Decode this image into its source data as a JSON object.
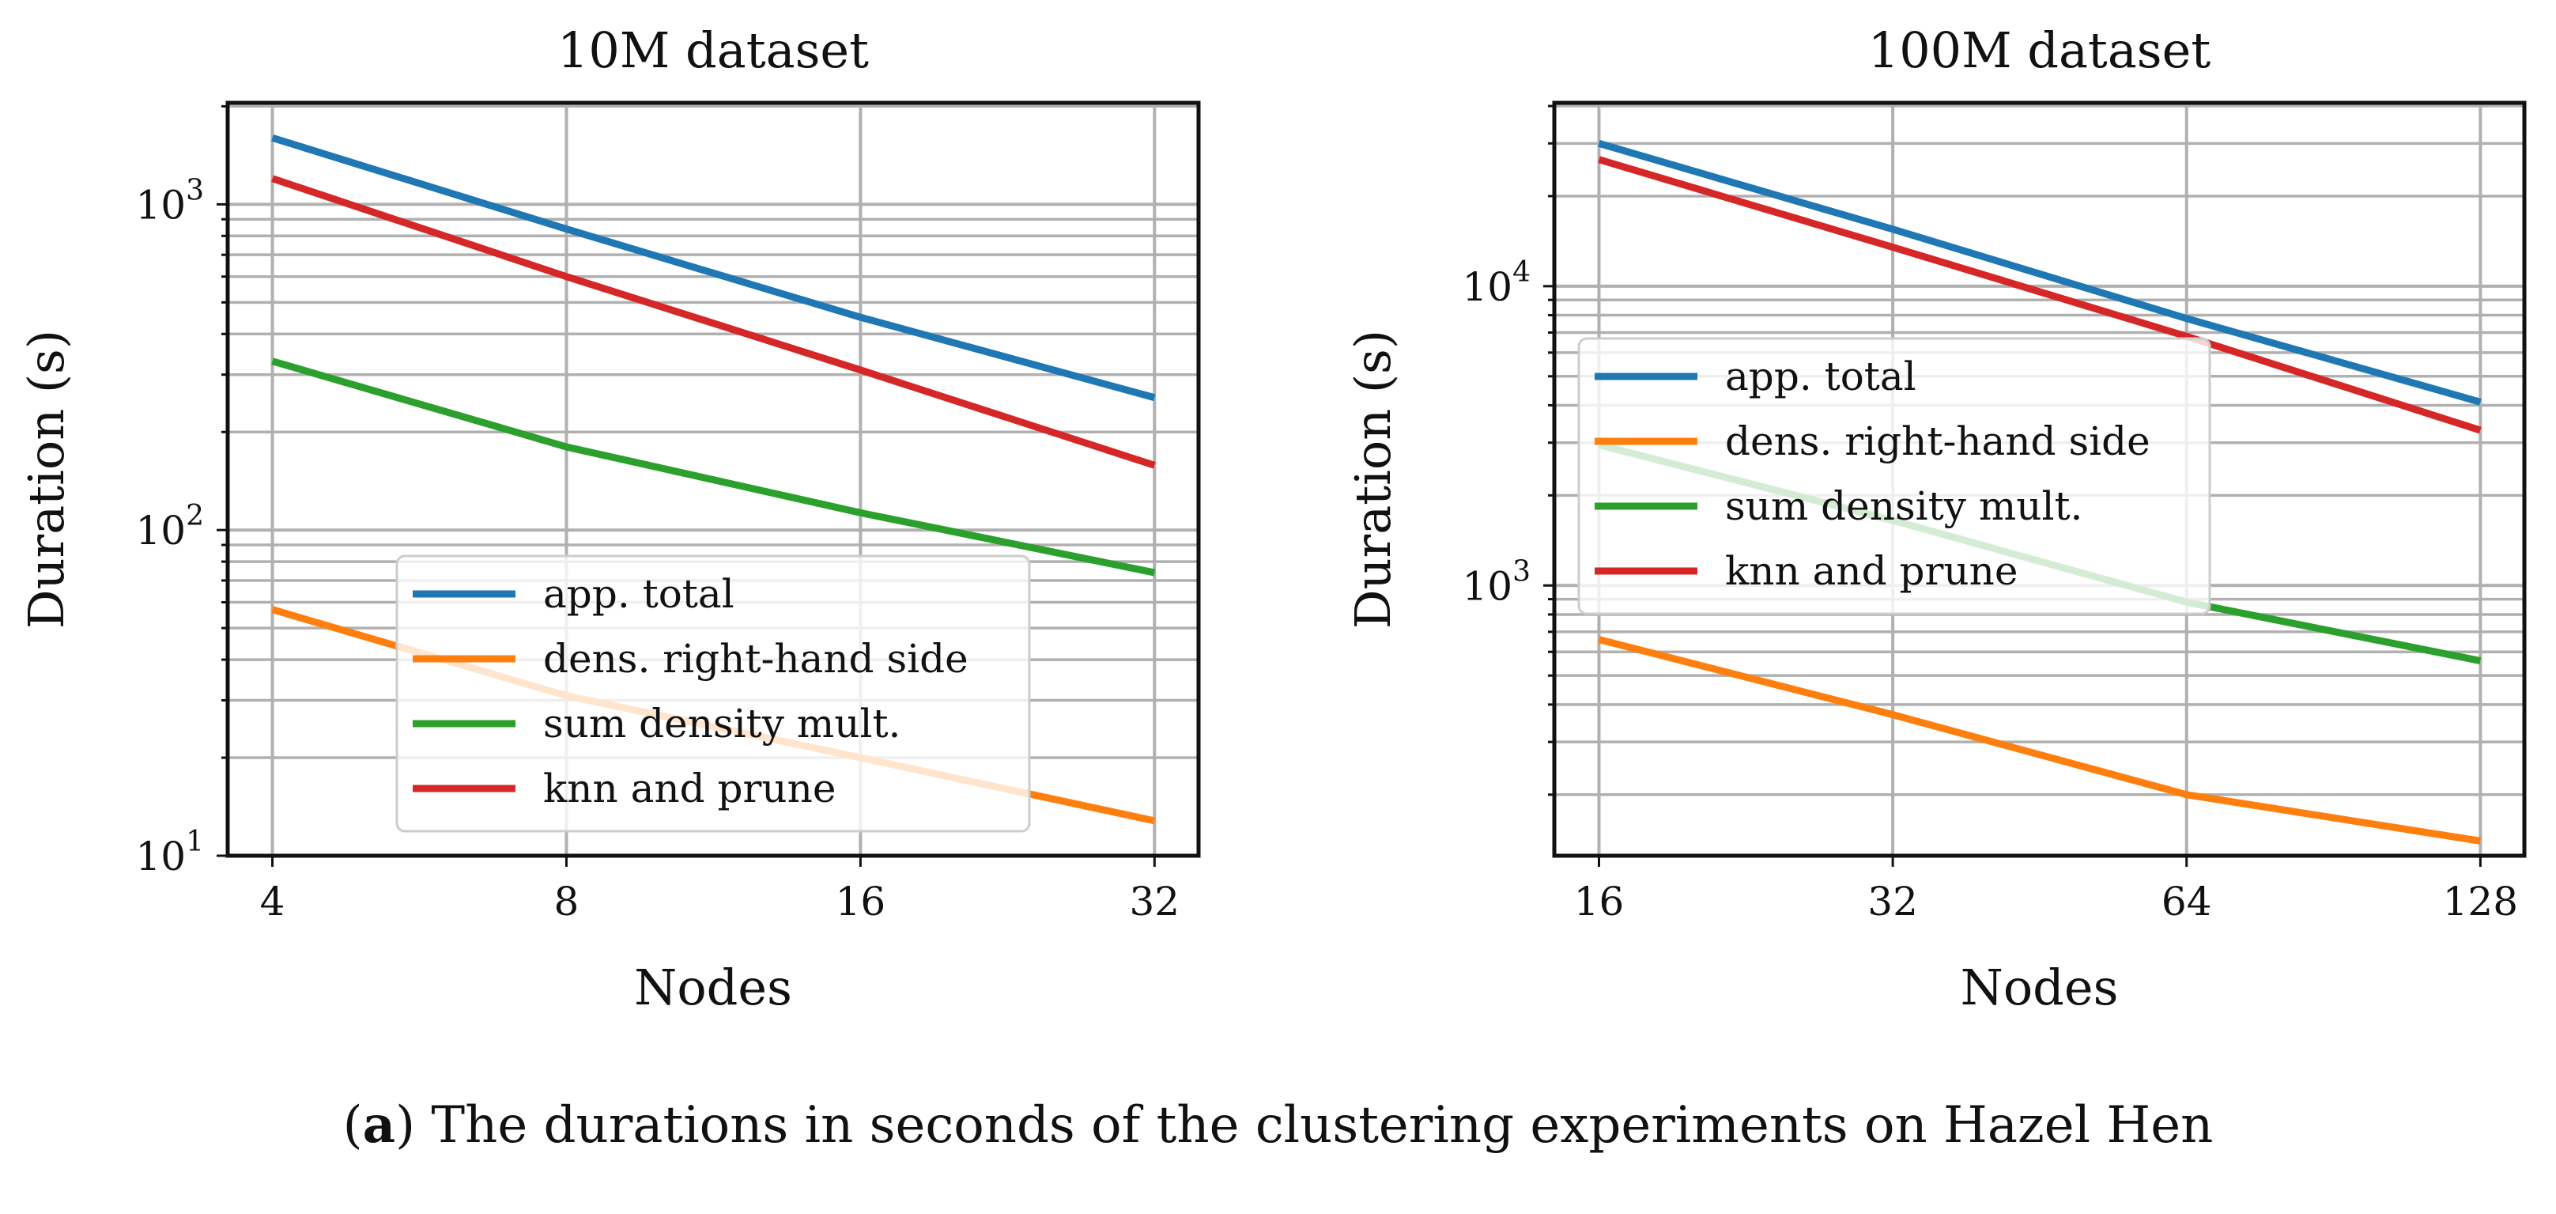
{
  "caption": {
    "label": "a",
    "text": "The durations in seconds of the clustering experiments on Hazel Hen"
  },
  "chart_data": [
    {
      "type": "line",
      "title": "10M dataset",
      "xlabel": "Nodes",
      "ylabel": "Duration (s)",
      "xscale": "log2",
      "yscale": "log10",
      "x": [
        4,
        8,
        16,
        32
      ],
      "xticks": [
        "4",
        "8",
        "16",
        "32"
      ],
      "xlim": [
        3.6,
        35.5
      ],
      "ylim": [
        10,
        2050
      ],
      "yticks": [
        {
          "base": "10",
          "exp": "1",
          "value": 10
        },
        {
          "base": "10",
          "exp": "2",
          "value": 100
        },
        {
          "base": "10",
          "exp": "3",
          "value": 1000
        }
      ],
      "grid": true,
      "legend": "lower-center",
      "series": [
        {
          "name": "app. total",
          "color": "#1f77b4",
          "values": [
            1600,
            840,
            450,
            255
          ]
        },
        {
          "name": "dens. right-hand side",
          "color": "#ff7f0e",
          "values": [
            57,
            31,
            20,
            12.8
          ]
        },
        {
          "name": "sum density mult.",
          "color": "#2ca02c",
          "values": [
            330,
            180,
            113,
            74
          ]
        },
        {
          "name": "knn and prune",
          "color": "#d62728",
          "values": [
            1200,
            600,
            310,
            158
          ]
        }
      ]
    },
    {
      "type": "line",
      "title": "100M dataset",
      "xlabel": "Nodes",
      "ylabel": "Duration (s)",
      "xscale": "log2",
      "yscale": "log10",
      "x": [
        16,
        32,
        64,
        128
      ],
      "xticks": [
        "16",
        "32",
        "64",
        "128"
      ],
      "xlim": [
        14.4,
        142
      ],
      "ylim": [
        125,
        41000
      ],
      "yticks": [
        {
          "base": "10",
          "exp": "3",
          "value": 1000
        },
        {
          "base": "10",
          "exp": "4",
          "value": 10000
        }
      ],
      "grid": true,
      "legend": "center-left",
      "series": [
        {
          "name": "app. total",
          "color": "#1f77b4",
          "values": [
            30000,
            15500,
            7800,
            4100
          ]
        },
        {
          "name": "dens. right-hand side",
          "color": "#ff7f0e",
          "values": [
            660,
            370,
            200,
            140
          ]
        },
        {
          "name": "sum density mult.",
          "color": "#2ca02c",
          "values": [
            2950,
            1650,
            880,
            560
          ]
        },
        {
          "name": "knn and prune",
          "color": "#d62728",
          "values": [
            26500,
            13500,
            6800,
            3300
          ]
        }
      ]
    }
  ]
}
